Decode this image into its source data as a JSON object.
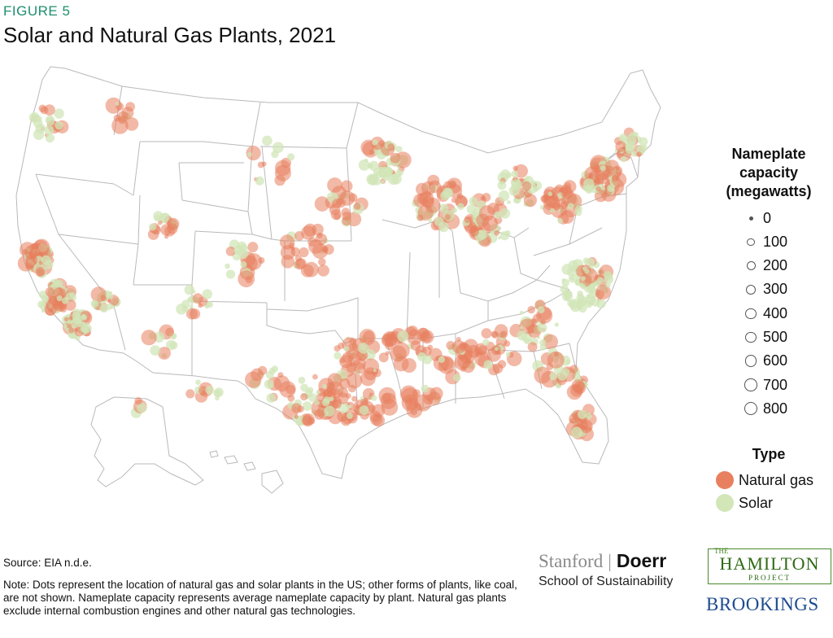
{
  "figure_label": "FIGURE 5",
  "title": "Solar and Natural Gas Plants, 2021",
  "legend": {
    "size_title_lines": [
      "Nameplate",
      "capacity",
      "(megawatts)"
    ],
    "sizes": [
      {
        "label": "0",
        "mw": 0
      },
      {
        "label": "100",
        "mw": 100
      },
      {
        "label": "200",
        "mw": 200
      },
      {
        "label": "300",
        "mw": 300
      },
      {
        "label": "400",
        "mw": 400
      },
      {
        "label": "500",
        "mw": 500
      },
      {
        "label": "600",
        "mw": 600
      },
      {
        "label": "700",
        "mw": 700
      },
      {
        "label": "800",
        "mw": 800
      }
    ],
    "type_title": "Type",
    "types": [
      {
        "label": "Natural gas",
        "color": "#e8805f"
      },
      {
        "label": "Solar",
        "color": "#d2e6b8"
      }
    ]
  },
  "source": "Source: EIA n.d.e.",
  "note": "Note: Dots represent the location of natural gas and solar plants in the US; other forms of plants, like coal, are not shown. Nameplate capacity represents average nameplate capacity by plant. Natural gas plants exclude internal combustion engines and other natural gas technologies.",
  "logos": {
    "stanford": "Stanford",
    "doerr": "Doerr",
    "school": "School of Sustainability",
    "hamilton_the": "THE",
    "hamilton": "HAMILTON",
    "hamilton_project": "PROJECT",
    "brookings": "BROOKINGS"
  },
  "colors": {
    "gas": "#e8805f",
    "solar": "#d2e6b8",
    "state_border": "#b9b9b9",
    "accent": "#1f8f6e"
  }
}
